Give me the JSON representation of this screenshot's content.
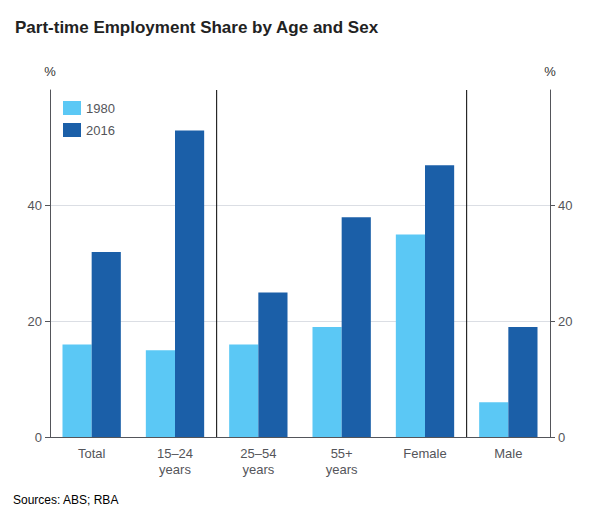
{
  "chart_data": {
    "type": "bar",
    "title": "Part-time Employment Share by Age and Sex",
    "categories": [
      "Total",
      "15–24\nyears",
      "25–54\nyears",
      "55+\nyears",
      "Female",
      "Male"
    ],
    "series": [
      {
        "name": "1980",
        "color": "#5bc8f5",
        "values": [
          16,
          15,
          16,
          19,
          35,
          6
        ]
      },
      {
        "name": "2016",
        "color": "#1b5fa8",
        "values": [
          32,
          53,
          25,
          38,
          47,
          19
        ]
      }
    ],
    "ylabel": "%",
    "y2label": "%",
    "ylim": [
      0,
      60
    ],
    "yticks": [
      0,
      20,
      40
    ],
    "y2lim": [
      0,
      60
    ],
    "y2ticks": [
      0,
      20,
      40
    ],
    "grid": true,
    "legend": "upper left",
    "dividers_after": [
      "15–24\nyears",
      "Female"
    ],
    "source": "Sources: ABS; RBA"
  }
}
